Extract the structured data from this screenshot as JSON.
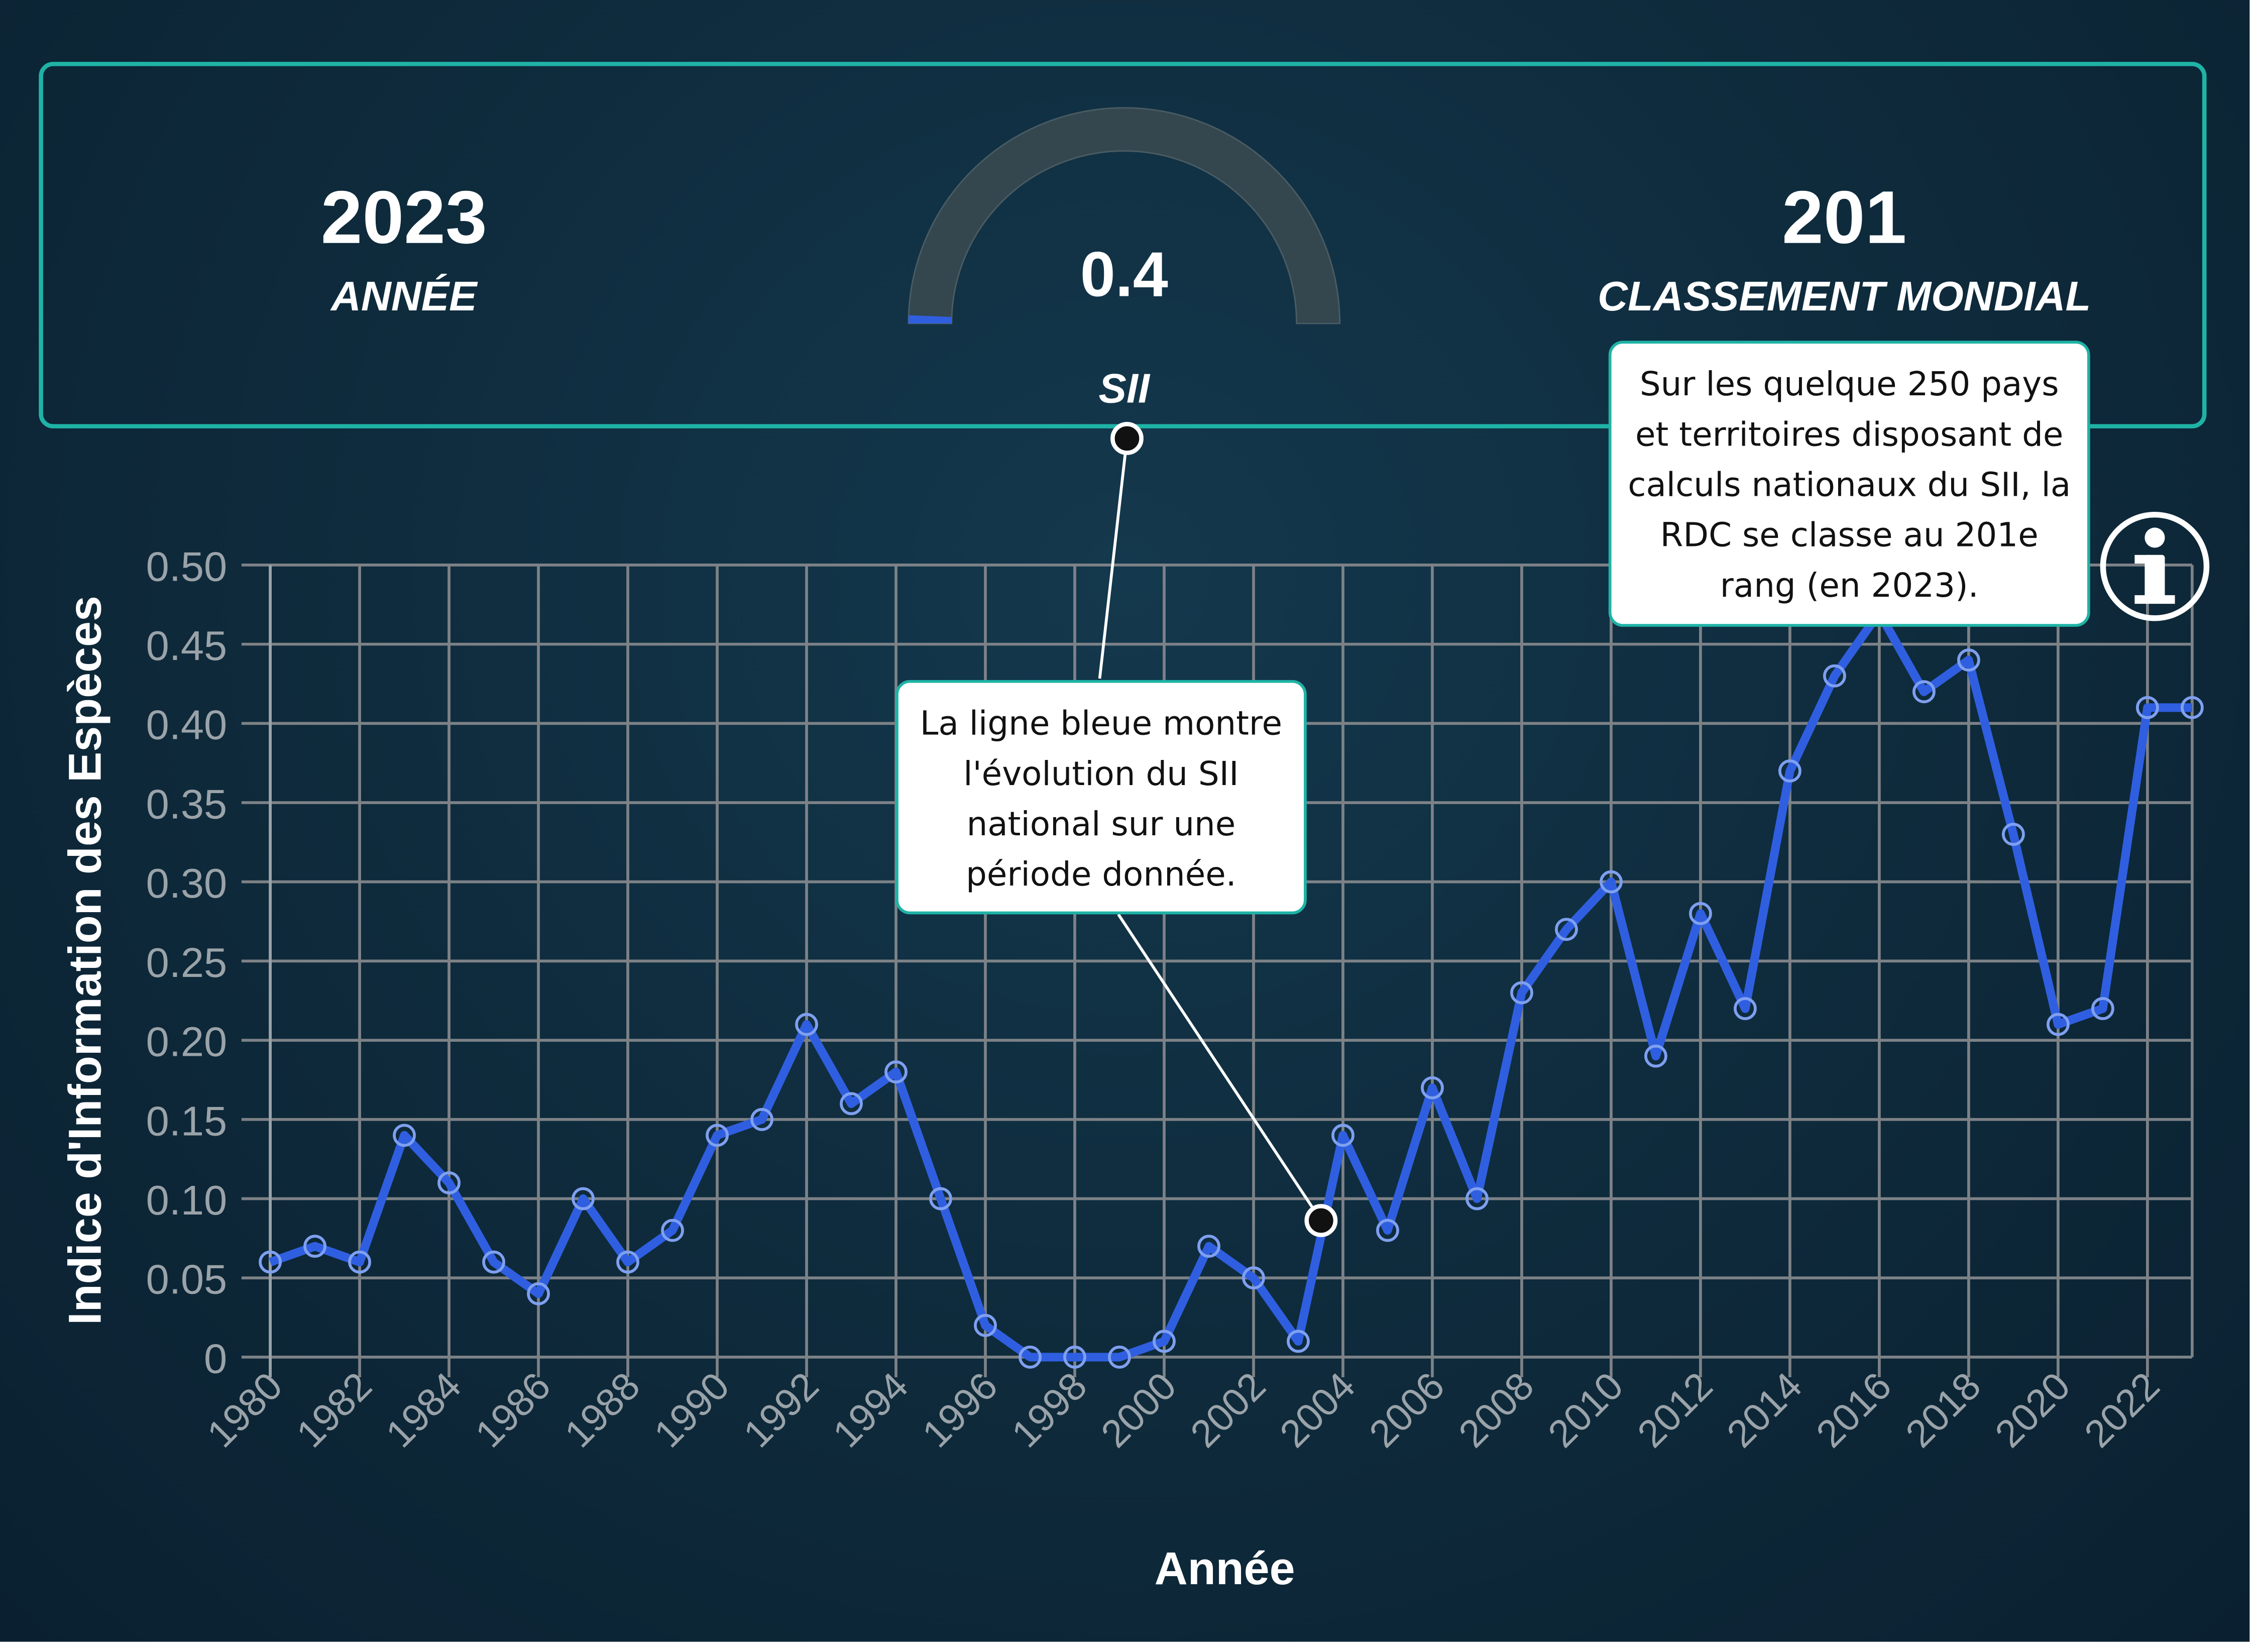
{
  "stats": {
    "year_value": "2023",
    "year_label": "ANNÉE",
    "gauge_value": "0.4",
    "gauge_label": "SII",
    "gauge_fraction": 0.004,
    "rank_value": "201",
    "rank_label": "CLASSEMENT MONDIAL"
  },
  "callouts": {
    "line_note": "La ligne bleue montre l'évolution du SII national sur une période donnée.",
    "rank_note": "Sur les quelque 250 pays et territoires disposant de calculs nationaux du SII, la RDC se classe au 201e rang (en 2023)."
  },
  "icons": {
    "info": "info-icon"
  },
  "colors": {
    "line": "#2f5fe0",
    "accent": "#1fb3a6",
    "grid": "#7d8287"
  },
  "chart_data": {
    "type": "line",
    "xlabel": "Année",
    "ylabel": "Indice d'Information des Espèces",
    "xlim": [
      1980,
      2023
    ],
    "ylim": [
      0,
      0.5
    ],
    "y_ticks": [
      "0",
      "0.05",
      "0.10",
      "0.15",
      "0.20",
      "0.25",
      "0.30",
      "0.35",
      "0.40",
      "0.45",
      "0.50"
    ],
    "x_ticks": [
      "1980",
      "1982",
      "1984",
      "1986",
      "1988",
      "1990",
      "1992",
      "1994",
      "1996",
      "1998",
      "2000",
      "2002",
      "2004",
      "2006",
      "2008",
      "2010",
      "2012",
      "2014",
      "2016",
      "2018",
      "2020",
      "2022"
    ],
    "grid": true,
    "series": [
      {
        "x": [
          1980,
          1981,
          1982,
          1983,
          1984,
          1985,
          1986,
          1987,
          1988,
          1989,
          1990,
          1991,
          1992,
          1993,
          1994,
          1995,
          1996,
          1997,
          1998,
          1999,
          2000,
          2001,
          2002,
          2003,
          2004,
          2005,
          2006,
          2007,
          2008,
          2009,
          2010,
          2011,
          2012,
          2013,
          2014,
          2015,
          2016,
          2017,
          2018,
          2019,
          2020,
          2021,
          2022,
          2023
        ],
        "values": [
          0.06,
          0.07,
          0.06,
          0.14,
          0.11,
          0.06,
          0.04,
          0.1,
          0.06,
          0.08,
          0.14,
          0.15,
          0.21,
          0.16,
          0.18,
          0.1,
          0.02,
          0.0,
          0.0,
          0.0,
          0.01,
          0.07,
          0.05,
          0.01,
          0.14,
          0.08,
          0.17,
          0.1,
          0.23,
          0.27,
          0.3,
          0.19,
          0.28,
          0.22,
          0.37,
          0.43,
          0.47,
          0.42,
          0.44,
          0.33,
          0.21,
          0.22,
          0.41,
          0.41
        ]
      }
    ]
  }
}
